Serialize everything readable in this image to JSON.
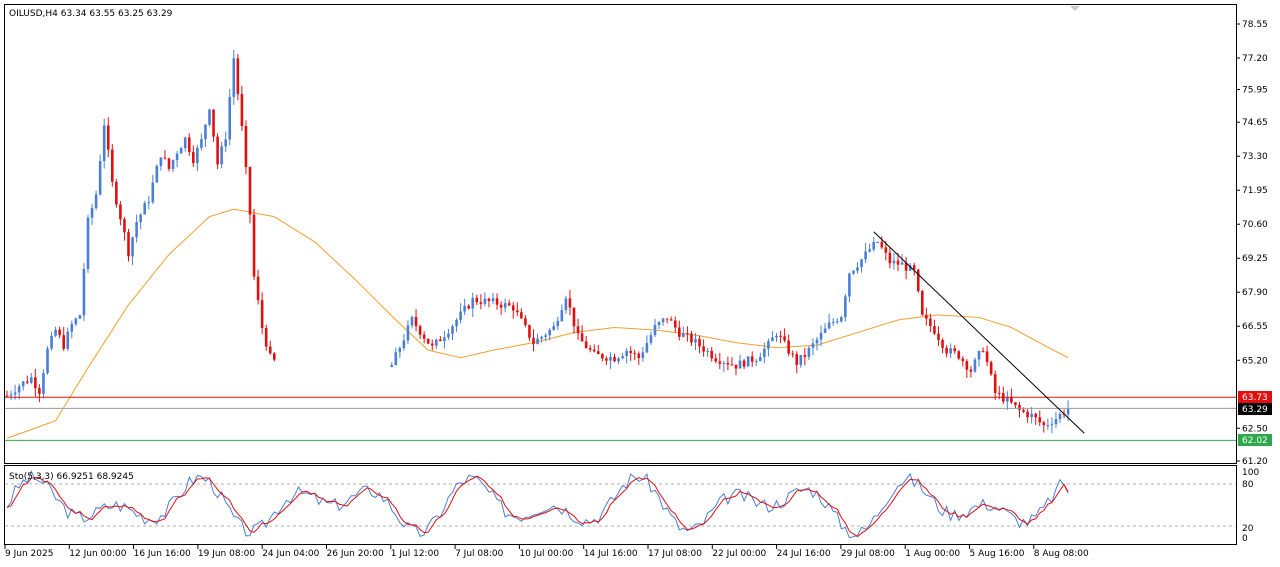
{
  "header": {
    "symbol_line": "OILUSD,H4  63.34 63.55 63.25 63.29"
  },
  "oscillator": {
    "label": "Sto(5,3,3) 66.9251 68.9245",
    "levels": [
      "100",
      "80",
      "20",
      "0"
    ]
  },
  "price_axis": {
    "labels": [
      "78.55",
      "77.20",
      "75.95",
      "74.65",
      "73.30",
      "71.95",
      "70.60",
      "69.25",
      "67.90",
      "66.55",
      "65.20",
      "62.50",
      "61.20"
    ]
  },
  "markers": {
    "resistance": "63.73",
    "current": "63.29",
    "support": "62.02"
  },
  "time_axis": {
    "labels": [
      "9 Jun 2025",
      "12 Jun 00:00",
      "16 Jun 16:00",
      "19 Jun 08:00",
      "24 Jun 04:00",
      "26 Jun 20:00",
      "1 Jul 12:00",
      "7 Jul 08:00",
      "10 Jul 00:00",
      "14 Jul 16:00",
      "17 Jul 08:00",
      "22 Jul 00:00",
      "24 Jul 16:00",
      "29 Jul 08:00",
      "1 Aug 00:00",
      "5 Aug 16:00",
      "8 Aug 08:00"
    ]
  },
  "colors": {
    "bull": "#4a7fd6",
    "bear": "#e01010",
    "ma": "#f0a030",
    "trendline": "#000000",
    "resistance": "#e01010",
    "support": "#2ea84a",
    "stoch_main": "#4a7fd6",
    "stoch_signal": "#e01010"
  },
  "chart_data": {
    "type": "candlestick",
    "symbol": "OILUSD",
    "timeframe": "H4",
    "ylim": [
      61.2,
      78.55
    ],
    "close_path": [
      [
        0,
        63.8
      ],
      [
        3,
        64.2
      ],
      [
        6,
        64.5
      ],
      [
        8,
        64.0
      ],
      [
        10,
        65.6
      ],
      [
        12,
        66.4
      ],
      [
        14,
        65.8
      ],
      [
        16,
        66.6
      ],
      [
        18,
        67.0
      ],
      [
        20,
        70.7
      ],
      [
        22,
        71.8
      ],
      [
        24,
        74.6
      ],
      [
        26,
        72.2
      ],
      [
        28,
        70.9
      ],
      [
        30,
        69.5
      ],
      [
        32,
        70.7
      ],
      [
        35,
        71.6
      ],
      [
        38,
        73.4
      ],
      [
        40,
        72.8
      ],
      [
        42,
        73.5
      ],
      [
        44,
        74.0
      ],
      [
        46,
        73.2
      ],
      [
        48,
        73.9
      ],
      [
        50,
        75.3
      ],
      [
        52,
        73.0
      ],
      [
        54,
        74.1
      ],
      [
        56,
        77.2
      ],
      [
        58,
        74.4
      ],
      [
        60,
        71.0
      ],
      [
        61,
        68.5
      ],
      [
        63,
        66.5
      ],
      [
        65,
        65.3
      ],
      [
        70,
        64.6
      ],
      [
        85,
        64.3
      ],
      [
        95,
        65.0
      ],
      [
        100,
        66.8
      ],
      [
        105,
        65.7
      ],
      [
        110,
        66.6
      ],
      [
        115,
        67.6
      ],
      [
        120,
        67.5
      ],
      [
        125,
        67.3
      ],
      [
        130,
        65.9
      ],
      [
        135,
        66.5
      ],
      [
        138,
        67.8
      ],
      [
        141,
        66.1
      ],
      [
        145,
        65.4
      ],
      [
        150,
        65.3
      ],
      [
        153,
        65.6
      ],
      [
        156,
        65.3
      ],
      [
        160,
        66.5
      ],
      [
        163,
        66.9
      ],
      [
        166,
        66.3
      ],
      [
        170,
        65.9
      ],
      [
        175,
        65.3
      ],
      [
        180,
        65.0
      ],
      [
        185,
        65.3
      ],
      [
        188,
        65.8
      ],
      [
        190,
        66.3
      ],
      [
        195,
        65.1
      ],
      [
        197,
        65.4
      ],
      [
        199,
        65.8
      ],
      [
        203,
        66.6
      ],
      [
        206,
        67.0
      ],
      [
        208,
        68.7
      ],
      [
        211,
        69.2
      ],
      [
        213,
        69.6
      ],
      [
        215,
        69.9
      ],
      [
        218,
        69.1
      ],
      [
        221,
        69.0
      ],
      [
        224,
        68.7
      ],
      [
        226,
        66.9
      ],
      [
        229,
        66.4
      ],
      [
        232,
        65.6
      ],
      [
        235,
        65.4
      ],
      [
        238,
        64.8
      ],
      [
        241,
        65.7
      ],
      [
        244,
        63.9
      ],
      [
        247,
        63.6
      ],
      [
        250,
        63.2
      ],
      [
        253,
        63.0
      ],
      [
        256,
        62.6
      ],
      [
        259,
        62.9
      ],
      [
        262,
        63.29
      ]
    ],
    "ma_path": [
      [
        0,
        62.1
      ],
      [
        12,
        62.8
      ],
      [
        20,
        64.9
      ],
      [
        30,
        67.4
      ],
      [
        40,
        69.4
      ],
      [
        50,
        70.9
      ],
      [
        56,
        71.2
      ],
      [
        66,
        70.9
      ],
      [
        76,
        69.9
      ],
      [
        86,
        68.4
      ],
      [
        96,
        66.8
      ],
      [
        104,
        65.6
      ],
      [
        112,
        65.3
      ],
      [
        120,
        65.6
      ],
      [
        130,
        65.9
      ],
      [
        140,
        66.3
      ],
      [
        150,
        66.5
      ],
      [
        160,
        66.4
      ],
      [
        170,
        66.2
      ],
      [
        180,
        65.9
      ],
      [
        190,
        65.7
      ],
      [
        200,
        65.8
      ],
      [
        210,
        66.3
      ],
      [
        220,
        66.8
      ],
      [
        230,
        67.0
      ],
      [
        240,
        66.9
      ],
      [
        248,
        66.5
      ],
      [
        256,
        65.8
      ],
      [
        262,
        65.3
      ]
    ],
    "trendline": {
      "from": [
        214,
        70.3
      ],
      "to": [
        266,
        62.3
      ]
    },
    "levels": {
      "resistance": 63.73,
      "current": 63.29,
      "support": 62.02
    },
    "stochastic": {
      "k": 66.9251,
      "d": 68.9245,
      "upper": 80,
      "lower": 20
    }
  }
}
